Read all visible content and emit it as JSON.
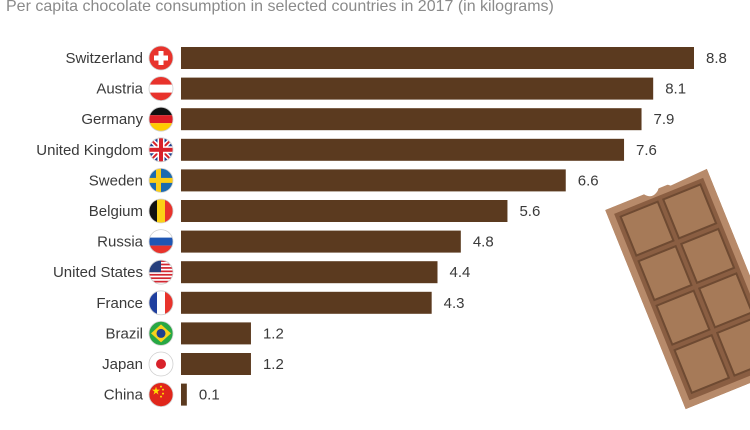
{
  "chart_data": {
    "type": "bar",
    "orientation": "horizontal",
    "title": "",
    "subtitle": "Per capita chocolate consumption in selected countries in 2017 (in kilograms)",
    "xlabel": "",
    "ylabel": "",
    "xlim": [
      0,
      8.8
    ],
    "grid": false,
    "legend": "none",
    "bar_color": "#5b3a1f",
    "categories": [
      "Switzerland",
      "Austria",
      "Germany",
      "United Kingdom",
      "Sweden",
      "Belgium",
      "Russia",
      "United States",
      "France",
      "Brazil",
      "Japan",
      "China"
    ],
    "values": [
      8.8,
      8.1,
      7.9,
      7.6,
      6.6,
      5.6,
      4.8,
      4.4,
      4.3,
      1.2,
      1.2,
      0.1
    ],
    "value_labels": [
      "8.8",
      "8.1",
      "7.9",
      "7.6",
      "6.6",
      "5.6",
      "4.8",
      "4.4",
      "4.3",
      "1.2",
      "1.2",
      "0.1"
    ],
    "flag_icons": [
      "switzerland-flag-icon",
      "austria-flag-icon",
      "germany-flag-icon",
      "united-kingdom-flag-icon",
      "sweden-flag-icon",
      "belgium-flag-icon",
      "russia-flag-icon",
      "united-states-flag-icon",
      "france-flag-icon",
      "brazil-flag-icon",
      "japan-flag-icon",
      "china-flag-icon"
    ],
    "decoration_icon": "chocolate-bar-icon"
  }
}
